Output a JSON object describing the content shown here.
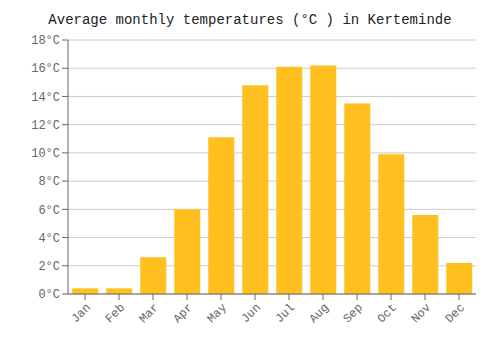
{
  "chart_data": {
    "type": "bar",
    "title": "Average monthly temperatures (°C ) in Kerteminde",
    "categories": [
      "Jan",
      "Feb",
      "Mar",
      "Apr",
      "May",
      "Jun",
      "Jul",
      "Aug",
      "Sep",
      "Oct",
      "Nov",
      "Dec"
    ],
    "values": [
      0.4,
      0.4,
      2.6,
      6.0,
      11.1,
      14.8,
      16.1,
      16.2,
      13.5,
      9.9,
      5.6,
      2.2
    ],
    "color": "#FFC020",
    "ylim": [
      0,
      18
    ],
    "yticks": [
      {
        "value": 0,
        "label": "0°C"
      },
      {
        "value": 2,
        "label": "2°C"
      },
      {
        "value": 4,
        "label": "4°C"
      },
      {
        "value": 6,
        "label": "6°C"
      },
      {
        "value": 8,
        "label": "8°C"
      },
      {
        "value": 10,
        "label": "10°C"
      },
      {
        "value": 12,
        "label": "12°C"
      },
      {
        "value": 14,
        "label": "14°C"
      },
      {
        "value": 16,
        "label": "16°C"
      },
      {
        "value": 18,
        "label": "18°C"
      }
    ],
    "grid": true
  }
}
